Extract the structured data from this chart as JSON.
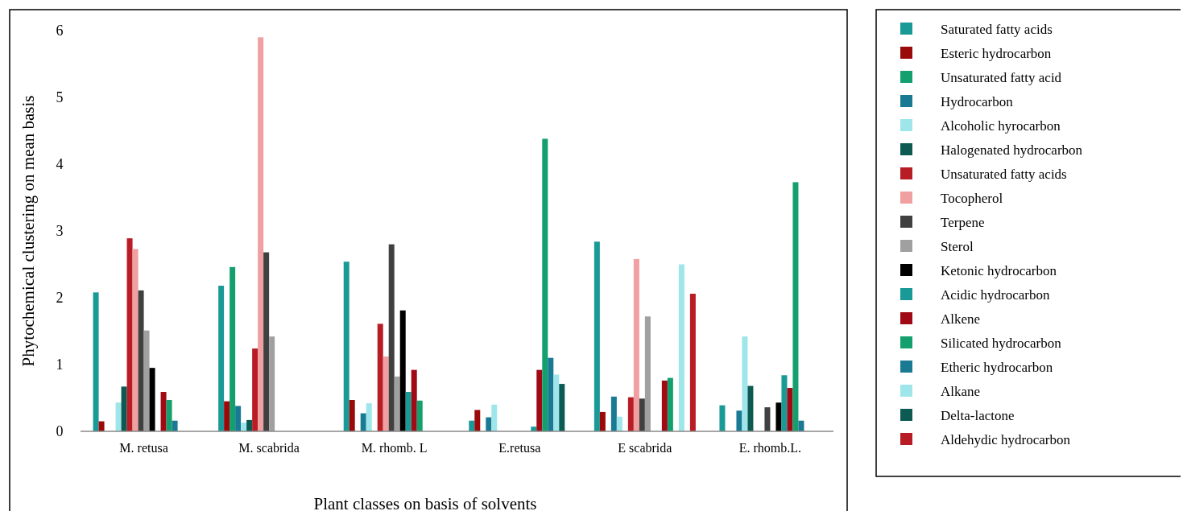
{
  "chart_data": {
    "type": "bar",
    "xlabel": "Plant classes on basis of solvents",
    "ylabel": "Phytochemical clustering on mean basis",
    "categories": [
      "M. retusa",
      "M. scabrida",
      "M. rhomb. L",
      "E.retusa",
      "E scabrida",
      "E. rhomb.L."
    ],
    "ylim": [
      0,
      6
    ],
    "yticks": [
      0,
      1,
      2,
      3,
      4,
      5,
      6
    ],
    "grid": false,
    "legend": "right",
    "series": [
      {
        "name": "Saturated fatty acids",
        "color": "#1a9a96",
        "values": [
          2.08,
          2.18,
          2.54,
          0.16,
          2.84,
          0.39
        ]
      },
      {
        "name": "Esteric hydrocarbon",
        "color": "#9b0a0a",
        "values": [
          0.15,
          0.45,
          0.47,
          0.32,
          0.29,
          0
        ]
      },
      {
        "name": "Unsaturated fatty acid",
        "color": "#14a06e",
        "values": [
          0,
          2.46,
          0,
          0,
          0,
          0
        ]
      },
      {
        "name": "Hydrocarbon",
        "color": "#1a7a94",
        "values": [
          0,
          0.38,
          0.27,
          0.21,
          0.52,
          0.31
        ]
      },
      {
        "name": "Alcoholic hyrocarbon",
        "color": "#9ee6ea",
        "values": [
          0.43,
          0.13,
          0.42,
          0.4,
          0.22,
          1.42
        ]
      },
      {
        "name": "Halogenated hydrocarbon",
        "color": "#0c5a52",
        "values": [
          0.67,
          0.17,
          0,
          0,
          0,
          0.68
        ]
      },
      {
        "name": "Unsaturated fatty acids",
        "color": "#b81c24",
        "values": [
          2.89,
          1.24,
          1.61,
          0,
          0.51,
          0
        ]
      },
      {
        "name": "Tocopherol",
        "color": "#f0a0a0",
        "values": [
          2.73,
          5.9,
          1.12,
          0,
          2.58,
          0
        ]
      },
      {
        "name": "Terpene",
        "color": "#404040",
        "values": [
          2.11,
          2.68,
          2.8,
          0,
          0.49,
          0.36
        ]
      },
      {
        "name": "Sterol",
        "color": "#a0a0a0",
        "values": [
          1.51,
          1.42,
          0.82,
          0,
          1.72,
          0
        ]
      },
      {
        "name": "Ketonic hydrocarbon",
        "color": "#000000",
        "values": [
          0.95,
          0,
          1.81,
          0,
          0,
          0.43
        ]
      },
      {
        "name": "Acidic hydrocarbon",
        "color": "#1a9a96",
        "values": [
          0,
          0,
          0.59,
          0.07,
          0,
          0.84
        ]
      },
      {
        "name": "Alkene",
        "color": "#a00a14",
        "values": [
          0.59,
          0,
          0.92,
          0.92,
          0.76,
          0.65
        ]
      },
      {
        "name": "Silicated hydrocarbon",
        "color": "#14a06e",
        "values": [
          0.47,
          0,
          0.46,
          4.38,
          0.8,
          3.73
        ]
      },
      {
        "name": "Etheric hydrocarbon",
        "color": "#1a7a94",
        "values": [
          0.16,
          0,
          0,
          1.1,
          0,
          0.16
        ]
      },
      {
        "name": "Alkane",
        "color": "#9ee6ea",
        "values": [
          0,
          0,
          0,
          0.85,
          2.5,
          0
        ]
      },
      {
        "name": "Delta-lactone",
        "color": "#0c5a52",
        "values": [
          0,
          0,
          0,
          0.71,
          0,
          0
        ]
      },
      {
        "name": "Aldehydic hydrocarbon",
        "color": "#b81c24",
        "values": [
          0,
          0,
          0,
          0,
          2.06,
          0
        ]
      }
    ]
  }
}
